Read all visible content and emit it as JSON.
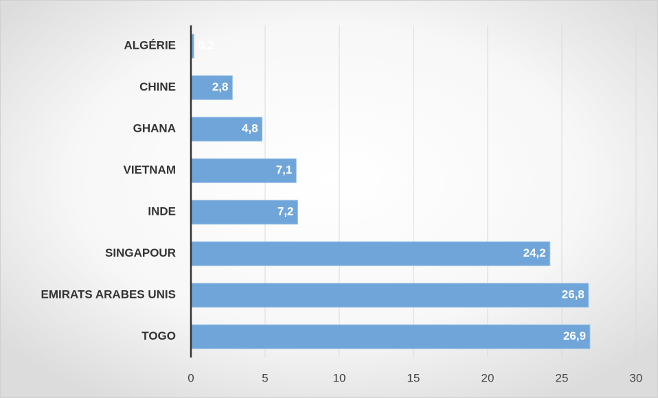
{
  "chart_data": {
    "type": "bar",
    "orientation": "horizontal",
    "categories": [
      "ALGÉRIE",
      "CHINE",
      "GHANA",
      "VIETNAM",
      "INDE",
      "SINGAPOUR",
      "EMIRATS ARABES UNIS",
      "TOGO"
    ],
    "values": [
      0.2,
      2.8,
      4.8,
      7.1,
      7.2,
      24.2,
      26.8,
      26.9
    ],
    "value_labels": [
      "0,2",
      "2,8",
      "4,8",
      "7,1",
      "7,2",
      "24,2",
      "26,8",
      "26,9"
    ],
    "color": "#6fa5d9",
    "xlim": [
      0,
      30
    ],
    "xticks": [
      0,
      5,
      10,
      15,
      20,
      25,
      30
    ],
    "grid": true
  }
}
